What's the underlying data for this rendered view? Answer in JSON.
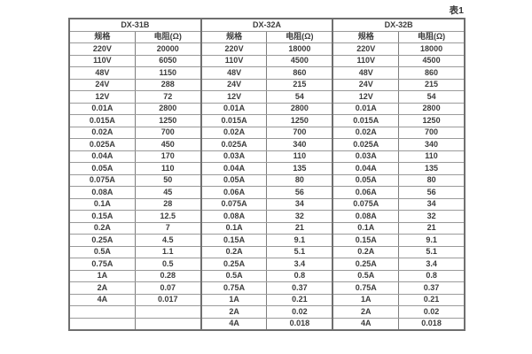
{
  "caption": "表1",
  "table": {
    "column_headers": {
      "spec": "规格",
      "resistance": "电阻(Ω)"
    },
    "groups": [
      {
        "name": "DX-31B",
        "rows": [
          [
            "220V",
            "20000"
          ],
          [
            "110V",
            "6050"
          ],
          [
            "48V",
            "1150"
          ],
          [
            "24V",
            "288"
          ],
          [
            "12V",
            "72"
          ],
          [
            "0.01A",
            "2800"
          ],
          [
            "0.015A",
            "1250"
          ],
          [
            "0.02A",
            "700"
          ],
          [
            "0.025A",
            "450"
          ],
          [
            "0.04A",
            "170"
          ],
          [
            "0.05A",
            "110"
          ],
          [
            "0.075A",
            "50"
          ],
          [
            "0.08A",
            "45"
          ],
          [
            "0.1A",
            "28"
          ],
          [
            "0.15A",
            "12.5"
          ],
          [
            "0.2A",
            "7"
          ],
          [
            "0.25A",
            "4.5"
          ],
          [
            "0.5A",
            "1.1"
          ],
          [
            "0.75A",
            "0.5"
          ],
          [
            "1A",
            "0.28"
          ],
          [
            "2A",
            "0.07"
          ],
          [
            "4A",
            "0.017"
          ],
          [
            "",
            ""
          ],
          [
            "",
            ""
          ]
        ]
      },
      {
        "name": "DX-32A",
        "rows": [
          [
            "220V",
            "18000"
          ],
          [
            "110V",
            "4500"
          ],
          [
            "48V",
            "860"
          ],
          [
            "24V",
            "215"
          ],
          [
            "12V",
            "54"
          ],
          [
            "0.01A",
            "2800"
          ],
          [
            "0.015A",
            "1250"
          ],
          [
            "0.02A",
            "700"
          ],
          [
            "0.025A",
            "340"
          ],
          [
            "0.03A",
            "110"
          ],
          [
            "0.04A",
            "135"
          ],
          [
            "0.05A",
            "80"
          ],
          [
            "0.06A",
            "56"
          ],
          [
            "0.075A",
            "34"
          ],
          [
            "0.08A",
            "32"
          ],
          [
            "0.1A",
            "21"
          ],
          [
            "0.15A",
            "9.1"
          ],
          [
            "0.2A",
            "5.1"
          ],
          [
            "0.25A",
            "3.4"
          ],
          [
            "0.5A",
            "0.8"
          ],
          [
            "0.75A",
            "0.37"
          ],
          [
            "1A",
            "0.21"
          ],
          [
            "2A",
            "0.02"
          ],
          [
            "4A",
            "0.018"
          ]
        ]
      },
      {
        "name": "DX-32B",
        "rows": [
          [
            "220V",
            "18000"
          ],
          [
            "110V",
            "4500"
          ],
          [
            "48V",
            "860"
          ],
          [
            "24V",
            "215"
          ],
          [
            "12V",
            "54"
          ],
          [
            "0.01A",
            "2800"
          ],
          [
            "0.015A",
            "1250"
          ],
          [
            "0.02A",
            "700"
          ],
          [
            "0.025A",
            "340"
          ],
          [
            "0.03A",
            "110"
          ],
          [
            "0.04A",
            "135"
          ],
          [
            "0.05A",
            "80"
          ],
          [
            "0.06A",
            "56"
          ],
          [
            "0.075A",
            "34"
          ],
          [
            "0.08A",
            "32"
          ],
          [
            "0.1A",
            "21"
          ],
          [
            "0.15A",
            "9.1"
          ],
          [
            "0.2A",
            "5.1"
          ],
          [
            "0.25A",
            "3.4"
          ],
          [
            "0.5A",
            "0.8"
          ],
          [
            "0.75A",
            "0.37"
          ],
          [
            "1A",
            "0.21"
          ],
          [
            "2A",
            "0.02"
          ],
          [
            "4A",
            "0.018"
          ]
        ]
      }
    ]
  }
}
